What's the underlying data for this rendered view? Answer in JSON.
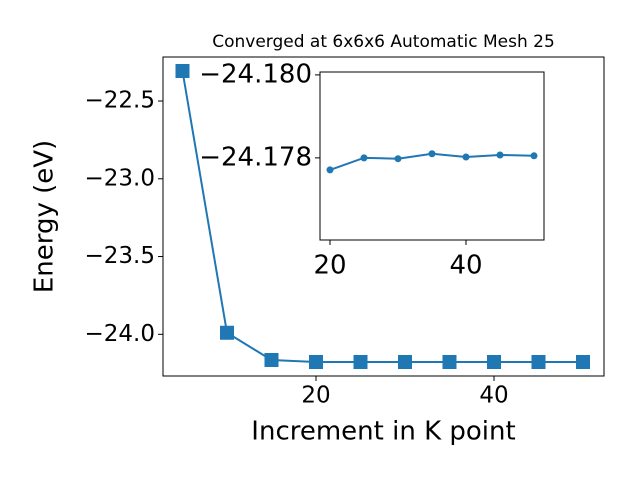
{
  "chart_data": [
    {
      "type": "line",
      "title": "Converged at 6x6x6 Automatic Mesh 25",
      "x_label": "Increment in K point",
      "y_label": "Energy (eV)",
      "x": [
        5,
        10,
        15,
        20,
        25,
        30,
        35,
        40,
        45,
        50
      ],
      "series": [
        {
          "color": "#1f77b4",
          "marker": "square",
          "values": [
            -22.307,
            -23.99,
            -24.165,
            -24.178,
            -24.178,
            -24.178,
            -24.178,
            -24.178,
            -24.178,
            -24.178
          ]
        }
      ],
      "xlim": [
        2.81,
        52.36
      ],
      "ylim": [
        -24.268,
        -22.217
      ],
      "xticks": [
        20,
        40
      ],
      "yticks": [
        {
          "value": -24.0,
          "label": "−24.0"
        },
        {
          "value": -23.5,
          "label": "−23.5"
        },
        {
          "value": -23.0,
          "label": "−23.0"
        },
        {
          "value": -22.5,
          "label": "−22.5"
        }
      ]
    },
    {
      "type": "line",
      "x": [
        20,
        25,
        30,
        35,
        40,
        45,
        50
      ],
      "series": [
        {
          "color": "#1f77b4",
          "marker": "circle",
          "values": [
            -24.17771,
            -24.178,
            -24.17798,
            -24.1781,
            -24.17802,
            -24.17807,
            -24.17805
          ]
        }
      ],
      "xlim": [
        18.53,
        51.47
      ],
      "ylim": [
        -24.17602,
        -24.18007
      ],
      "xticks": [
        20,
        40
      ],
      "yticks": [
        {
          "value": -24.178,
          "label": "−24.178"
        },
        {
          "value": -24.18,
          "label": "−24.180"
        }
      ]
    }
  ]
}
